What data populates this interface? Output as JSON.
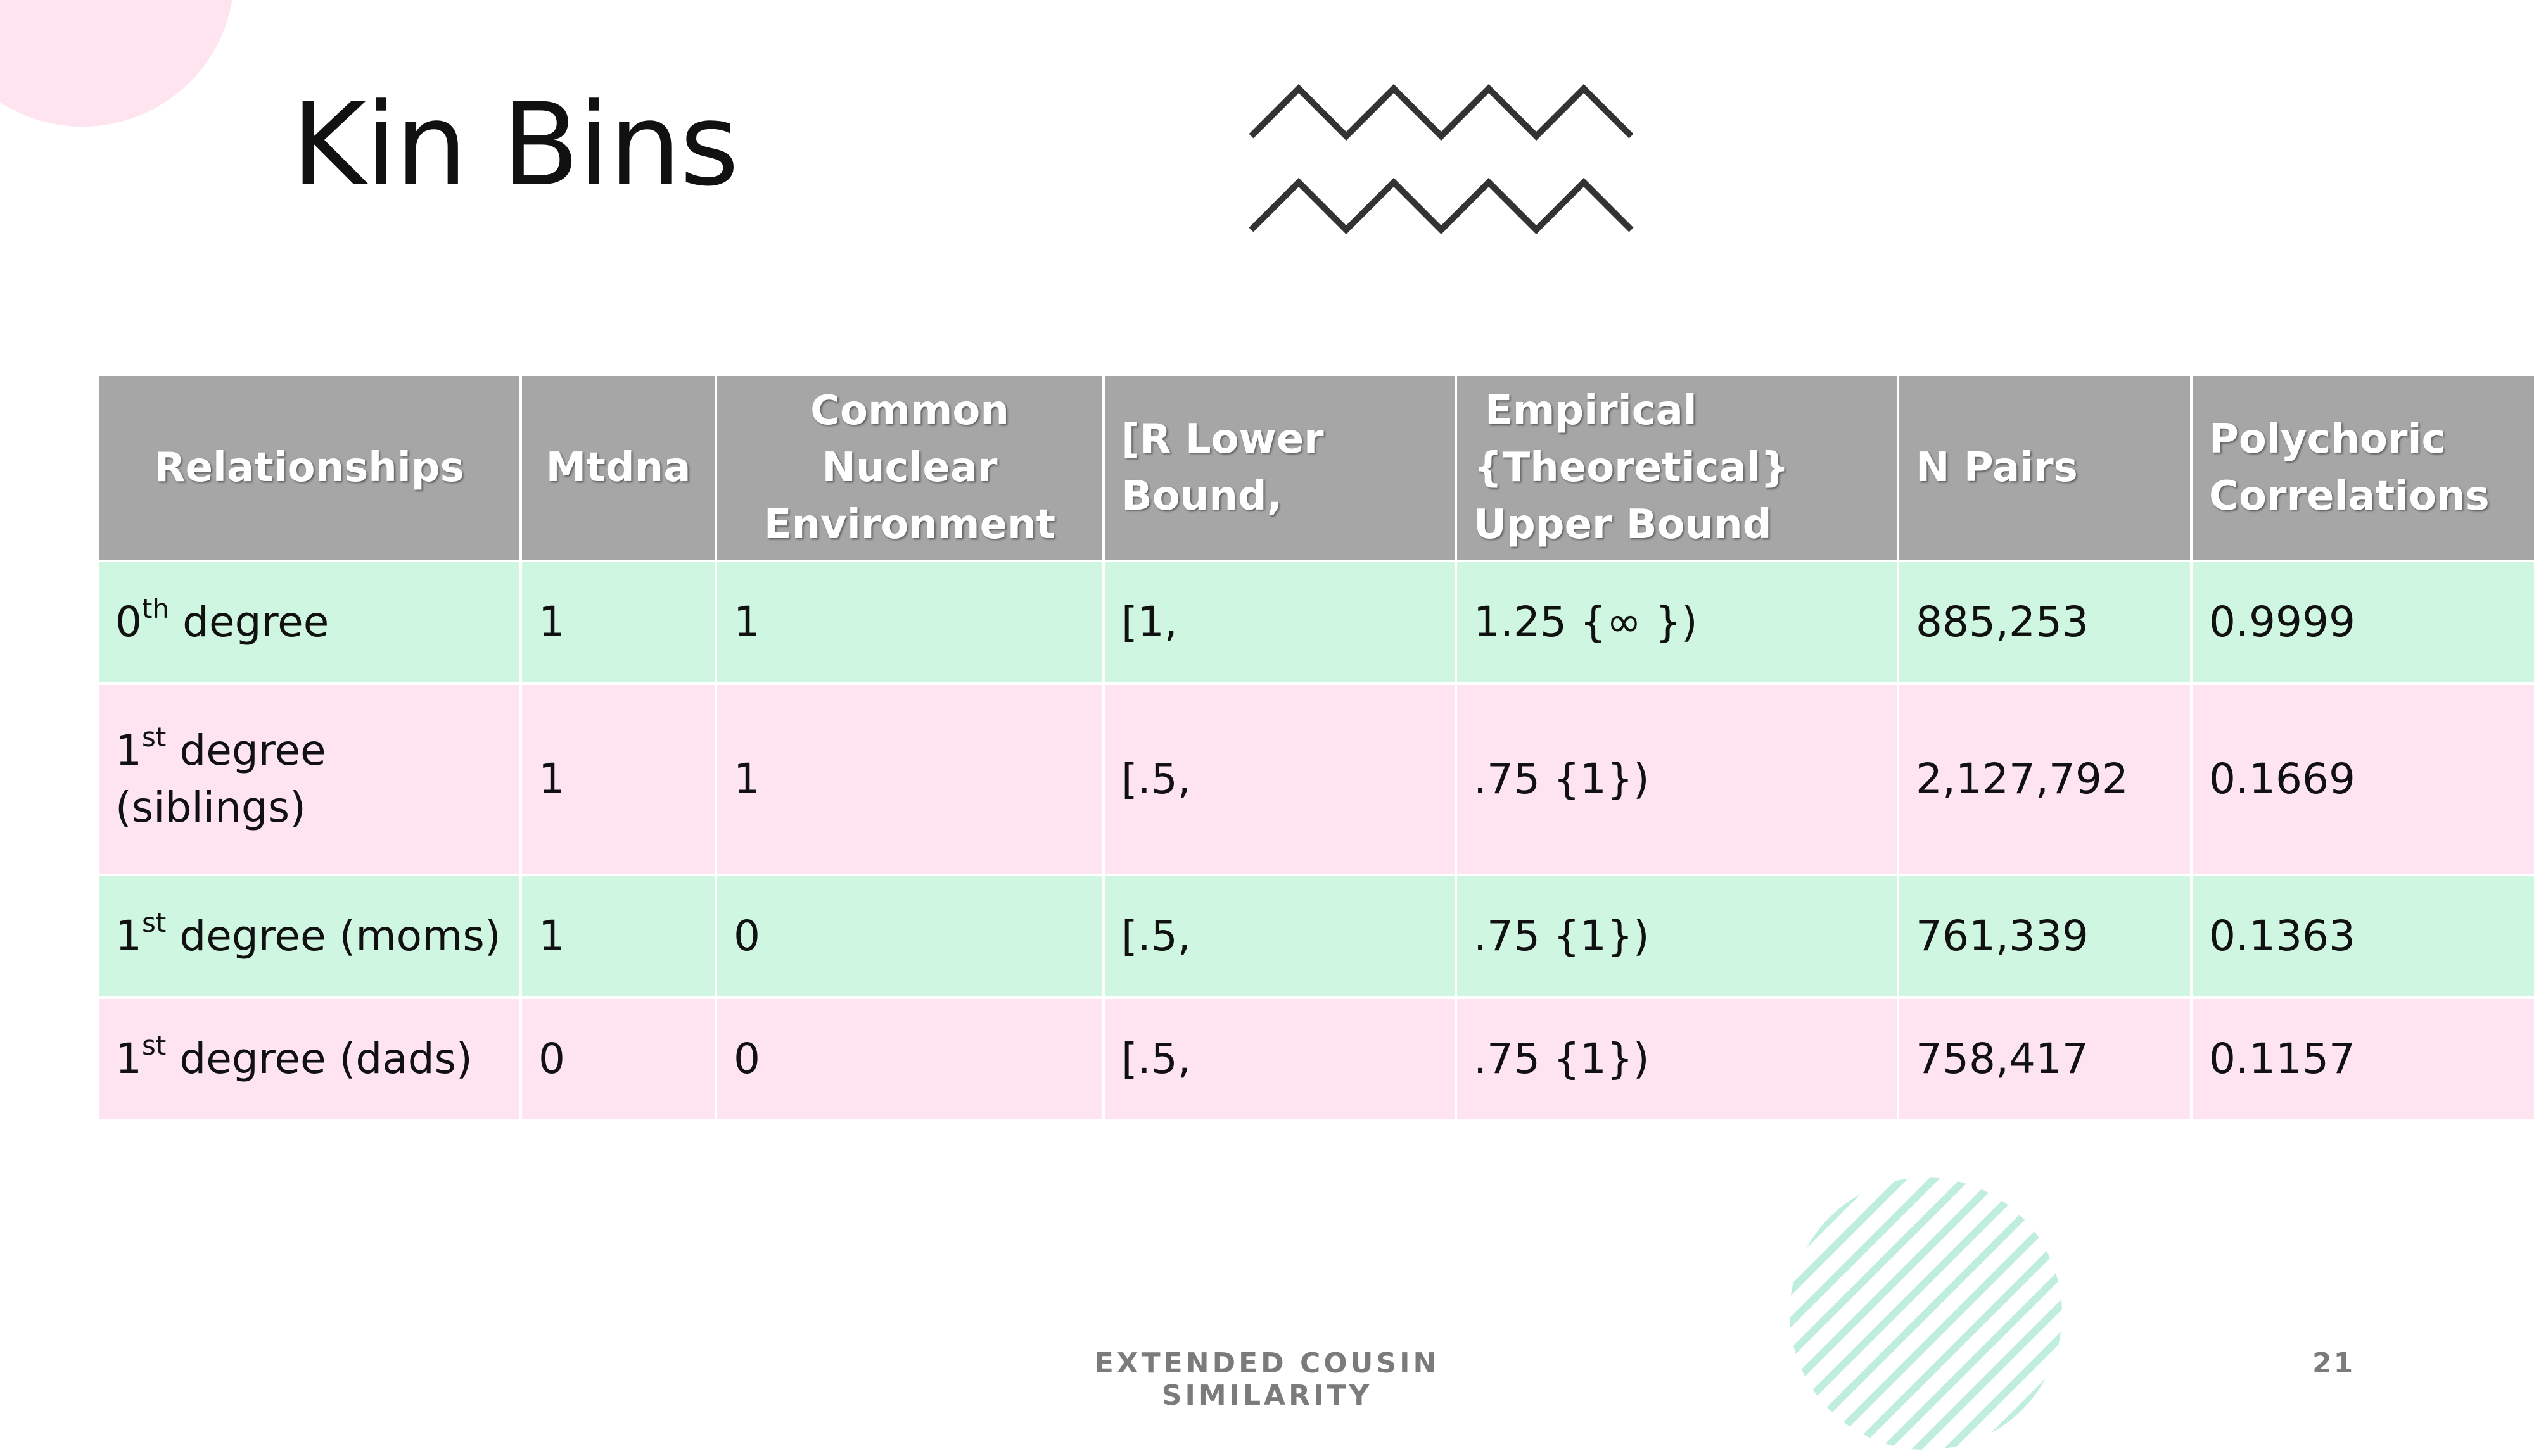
{
  "slide": {
    "title": "Kin Bins",
    "footer": "EXTENDED COUSIN SIMILARITY",
    "page_number": "21"
  },
  "table": {
    "headers": [
      [
        "Relationships"
      ],
      [
        "Mtdna"
      ],
      [
        "Common",
        "Nuclear",
        "Environment"
      ],
      [
        "[R Lower",
        "Bound,"
      ],
      [
        "Empirical",
        "{Theoretical}",
        "Upper Bound"
      ],
      [
        "N Pairs"
      ],
      [
        "Polychoric",
        "Correlations"
      ]
    ],
    "rows": [
      {
        "relationship": {
          "num": "0",
          "sup": "th",
          "text": " degree",
          "line2": ""
        },
        "mtdna": "1",
        "cne": "1",
        "lower": "[1,",
        "upper": "1.25 {∞ })",
        "n_pairs": "885,253",
        "corr": "0.9999"
      },
      {
        "relationship": {
          "num": "1",
          "sup": "st",
          "text": " degree",
          "line2": "(siblings)"
        },
        "mtdna": "1",
        "cne": "1",
        "lower": "[.5,",
        "upper": ".75 {1})",
        "n_pairs": "2,127,792",
        "corr": "0.1669"
      },
      {
        "relationship": {
          "num": "1",
          "sup": "st",
          "text": " degree (moms)",
          "line2": ""
        },
        "mtdna": "1",
        "cne": "0",
        "lower": "[.5,",
        "upper": ".75 {1})",
        "n_pairs": "761,339",
        "corr": "0.1363"
      },
      {
        "relationship": {
          "num": "1",
          "sup": "st",
          "text": " degree (dads)",
          "line2": ""
        },
        "mtdna": "0",
        "cne": "0",
        "lower": "[.5,",
        "upper": ".75 {1})",
        "n_pairs": "758,417",
        "corr": "0.1157"
      }
    ]
  },
  "colors": {
    "header_bg": "#a6a6a6",
    "row_green": "#cff6e1",
    "row_pink": "#fde4f0",
    "deco_pink": "#fde4ef",
    "hatch_green": "#bfeedd"
  }
}
